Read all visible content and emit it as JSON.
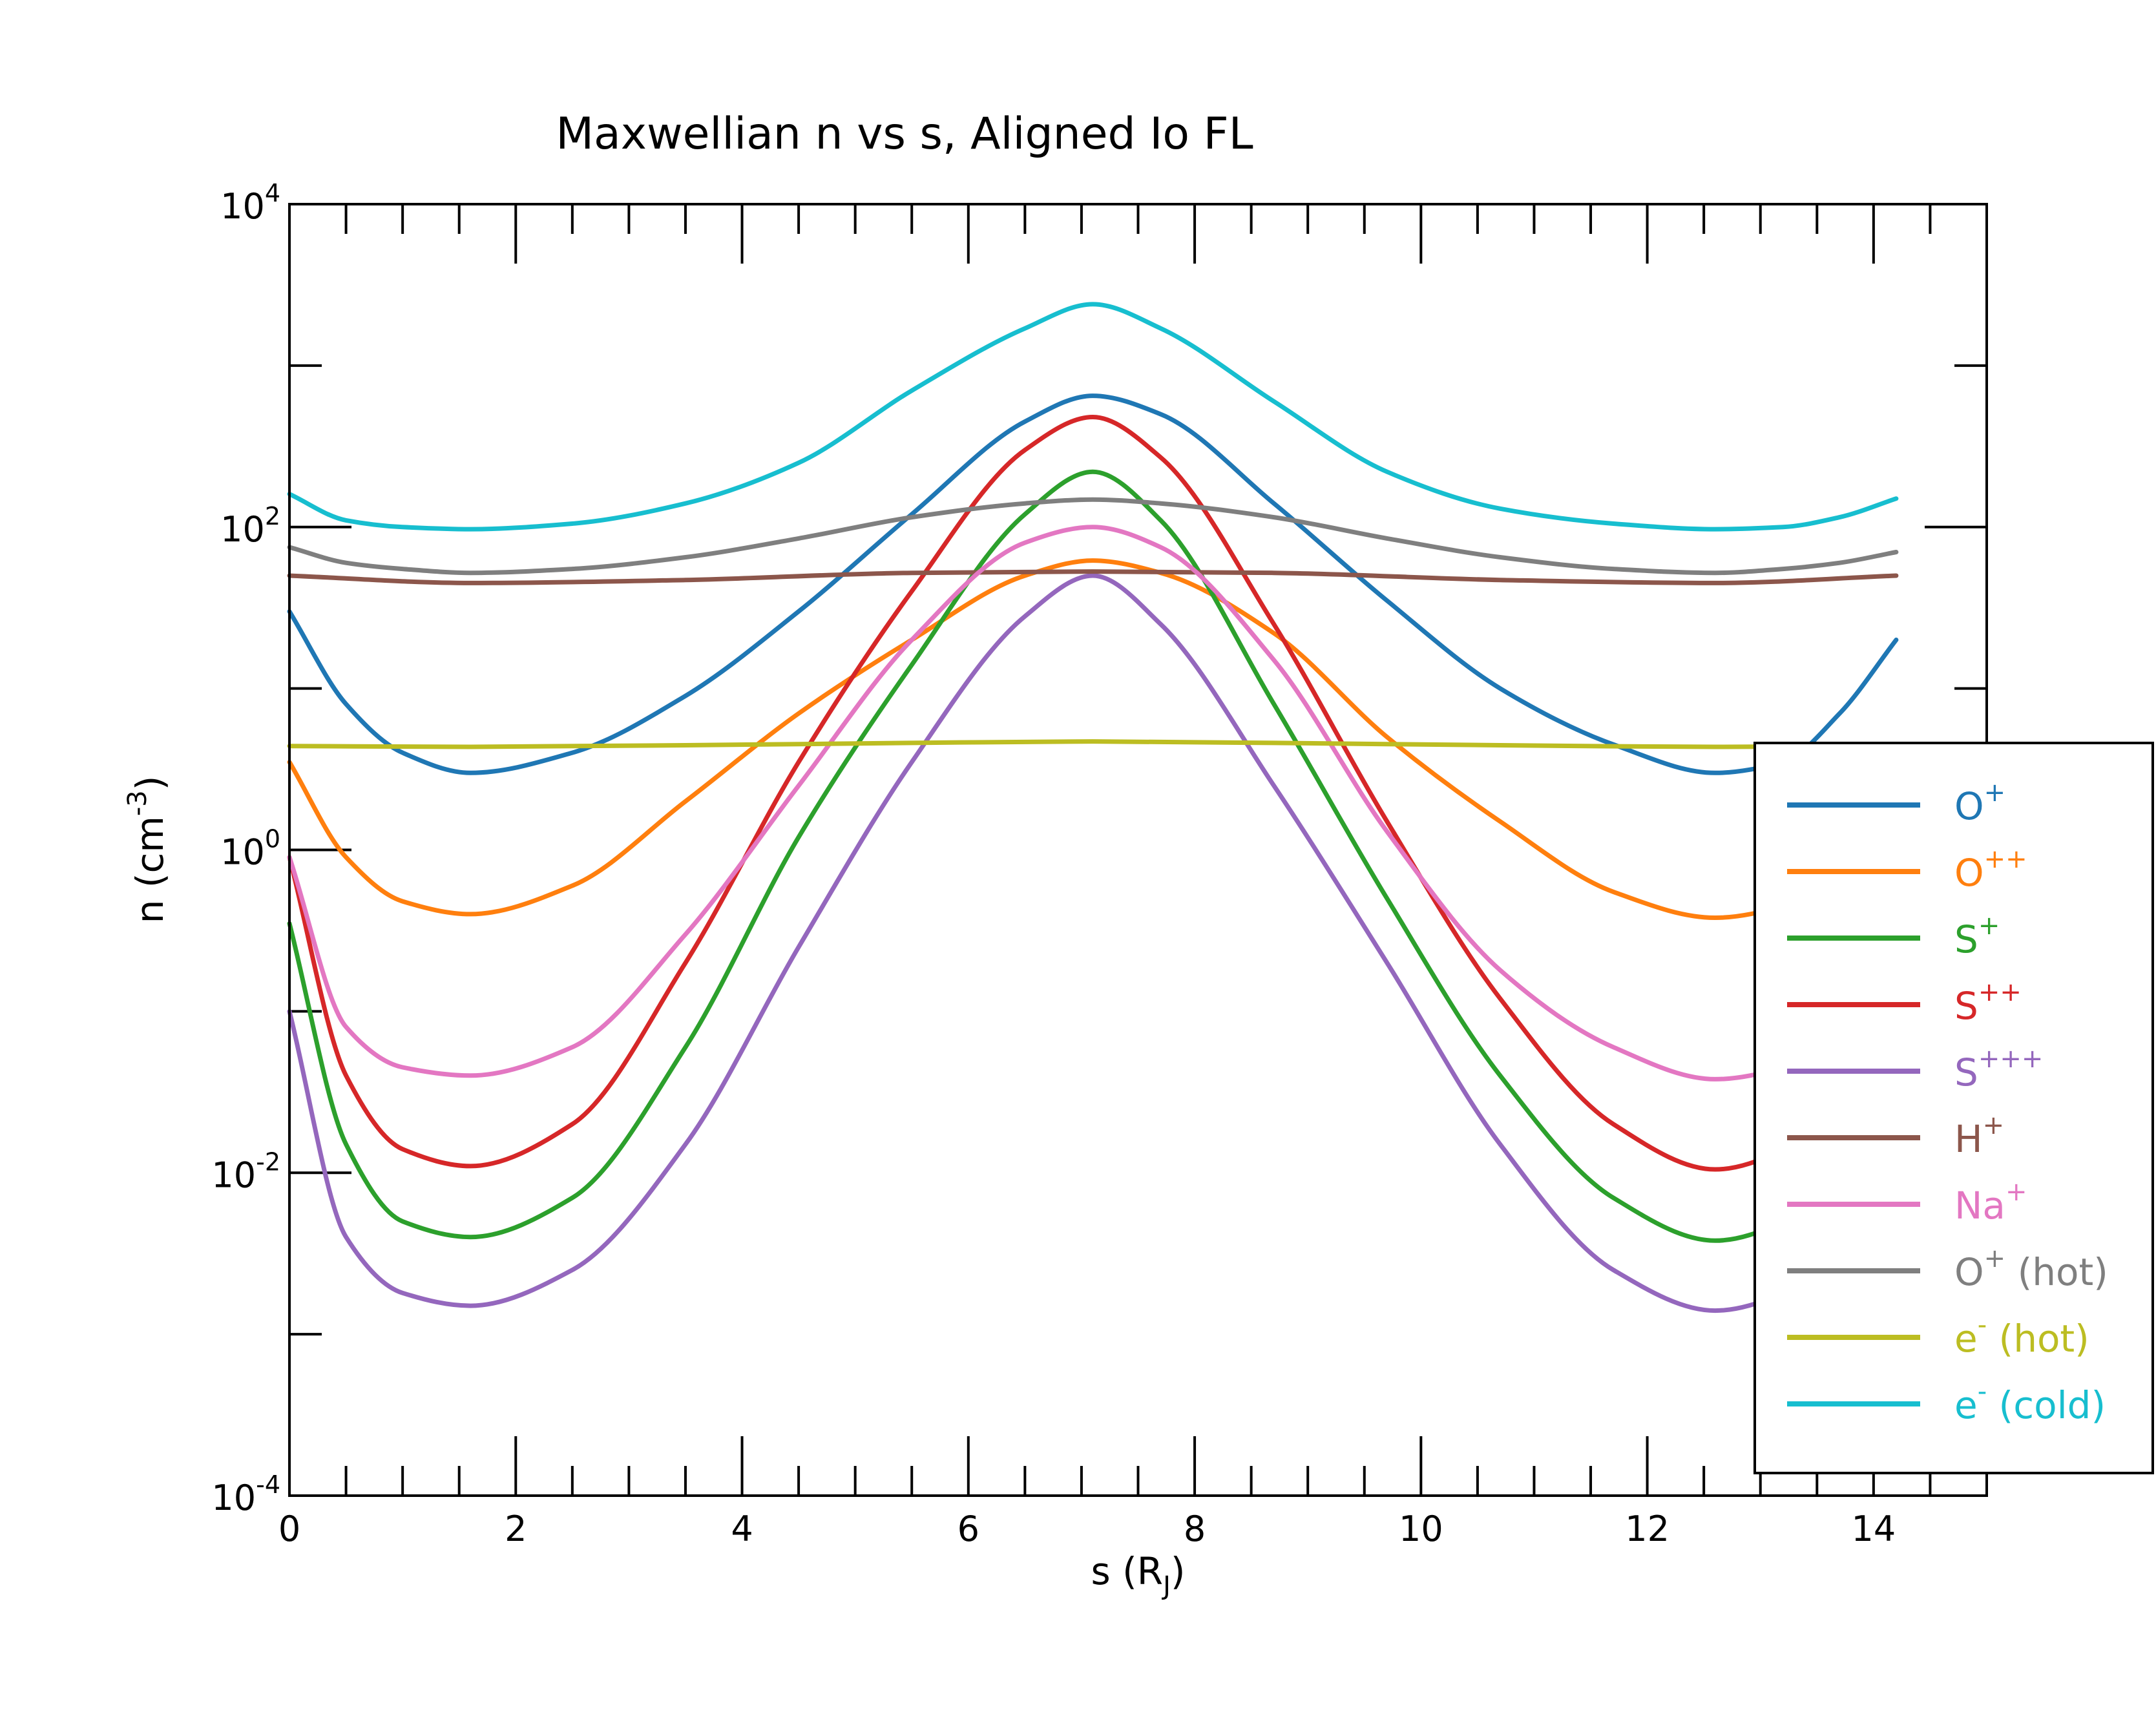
{
  "chart_data": {
    "type": "line",
    "title": "Maxwellian n vs s, Aligned Io FL",
    "xlabel": {
      "base": "s (R",
      "sub": "J",
      "suffix": ")"
    },
    "ylabel": {
      "base": "n (cm",
      "sup": "-3",
      "suffix": ")"
    },
    "x_range": [
      0,
      15
    ],
    "y_range": [
      0.0001,
      10000
    ],
    "y_scale": "log",
    "x_ticks": [
      {
        "value": 0,
        "label": "0"
      },
      {
        "value": 2,
        "label": "2"
      },
      {
        "value": 4,
        "label": "4"
      },
      {
        "value": 6,
        "label": "6"
      },
      {
        "value": 8,
        "label": "8"
      },
      {
        "value": 10,
        "label": "10"
      },
      {
        "value": 12,
        "label": "12"
      },
      {
        "value": 14,
        "label": "14"
      }
    ],
    "y_ticks": [
      {
        "value": 0.0001,
        "base": "10",
        "exp": "-4"
      },
      {
        "value": 0.01,
        "base": "10",
        "exp": "-2"
      },
      {
        "value": 1,
        "base": "10",
        "exp": "0"
      },
      {
        "value": 100,
        "base": "10",
        "exp": "2"
      },
      {
        "value": 10000,
        "base": "10",
        "exp": "4"
      }
    ],
    "legend_position": "right",
    "series": [
      {
        "name": "O",
        "sup": "+",
        "suffix": "",
        "color": "#1f77b4",
        "x": [
          0,
          0.5,
          1,
          1.6,
          2.5,
          3.5,
          4.5,
          5.5,
          6.5,
          7.1,
          7.7,
          8.7,
          9.7,
          10.7,
          11.7,
          12.6,
          13.2,
          13.7,
          14.2
        ],
        "y": [
          30,
          8,
          4,
          3,
          4,
          9,
          30,
          120,
          450,
          650,
          500,
          140,
          35,
          10,
          4.5,
          3,
          3.5,
          7,
          20
        ]
      },
      {
        "name": "O",
        "sup": "++",
        "suffix": "",
        "color": "#ff7f0e",
        "x": [
          0,
          0.5,
          1,
          1.6,
          2.5,
          3.5,
          4.5,
          5.5,
          6.5,
          7.1,
          7.7,
          8.7,
          9.7,
          10.7,
          11.7,
          12.6,
          13.2,
          13.7,
          14.2
        ],
        "y": [
          3.5,
          0.9,
          0.48,
          0.4,
          0.6,
          2,
          7,
          20,
          50,
          62,
          52,
          22,
          5,
          1.5,
          0.55,
          0.38,
          0.45,
          1.2,
          3
        ]
      },
      {
        "name": "S",
        "sup": "+",
        "suffix": "",
        "color": "#2ca02c",
        "x": [
          0,
          0.5,
          1,
          1.6,
          2.5,
          3.5,
          4.5,
          5.5,
          6.5,
          7.1,
          7.7,
          8.7,
          9.7,
          10.7,
          11.7,
          12.6,
          13.2,
          13.7,
          14.2
        ],
        "y": [
          0.35,
          0.015,
          0.005,
          0.004,
          0.007,
          0.06,
          1.2,
          14,
          120,
          220,
          110,
          8,
          0.5,
          0.04,
          0.007,
          0.0038,
          0.005,
          0.02,
          0.3
        ]
      },
      {
        "name": "S",
        "sup": "++",
        "suffix": "",
        "color": "#d62728",
        "x": [
          0,
          0.5,
          1,
          1.6,
          2.5,
          3.5,
          4.5,
          5.5,
          6.5,
          7.1,
          7.7,
          8.7,
          9.7,
          10.7,
          11.7,
          12.6,
          13.2,
          13.7,
          14.2
        ],
        "y": [
          0.9,
          0.04,
          0.014,
          0.011,
          0.02,
          0.2,
          3.5,
          40,
          300,
          480,
          270,
          25,
          1.5,
          0.12,
          0.02,
          0.0105,
          0.014,
          0.06,
          0.9
        ]
      },
      {
        "name": "S",
        "sup": "+++",
        "suffix": "",
        "color": "#9467bd",
        "x": [
          0,
          0.5,
          1,
          1.6,
          2.5,
          3.5,
          4.5,
          5.5,
          6.5,
          7.1,
          7.7,
          8.7,
          9.7,
          10.7,
          11.7,
          12.6,
          13.2,
          13.7,
          14.2
        ],
        "y": [
          0.1,
          0.004,
          0.0018,
          0.0015,
          0.0025,
          0.015,
          0.25,
          3.5,
          28,
          50,
          25,
          2.5,
          0.2,
          0.015,
          0.0025,
          0.0014,
          0.0018,
          0.006,
          0.1
        ]
      },
      {
        "name": "H",
        "sup": "+",
        "suffix": "",
        "color": "#8c564b",
        "x": [
          0,
          1.6,
          3.5,
          5.5,
          7.1,
          8.7,
          10.7,
          12.6,
          14.2
        ],
        "y": [
          50,
          45,
          47,
          52,
          53,
          52,
          47,
          45,
          50
        ]
      },
      {
        "name": "Na",
        "sup": "+",
        "suffix": "",
        "color": "#e377c2",
        "x": [
          0,
          0.5,
          1,
          1.6,
          2.5,
          3.5,
          4.5,
          5.5,
          6.5,
          7.1,
          7.7,
          8.7,
          9.7,
          10.7,
          11.7,
          12.6,
          13.2,
          13.7,
          14.2
        ],
        "y": [
          0.9,
          0.08,
          0.045,
          0.04,
          0.06,
          0.3,
          2.5,
          20,
          80,
          100,
          75,
          15,
          1.3,
          0.18,
          0.06,
          0.038,
          0.045,
          0.12,
          0.9
        ]
      },
      {
        "name": "O",
        "sup": "+",
        "suffix": " (hot)",
        "color": "#7f7f7f",
        "x": [
          0,
          0.5,
          1,
          1.6,
          2.5,
          3.5,
          4.5,
          5.5,
          6.5,
          7.1,
          7.7,
          8.7,
          9.7,
          10.7,
          11.7,
          12.6,
          13.2,
          13.7,
          14.2
        ],
        "y": [
          75,
          60,
          55,
          52,
          55,
          65,
          85,
          115,
          140,
          148,
          140,
          115,
          85,
          65,
          55,
          52,
          55,
          60,
          70
        ]
      },
      {
        "name": "e",
        "sup": "-",
        "suffix": " (hot)",
        "color": "#bcbd22",
        "x": [
          0,
          1.6,
          3.5,
          5.5,
          7.1,
          8.7,
          10.7,
          12.6,
          14.2
        ],
        "y": [
          4.4,
          4.35,
          4.45,
          4.6,
          4.7,
          4.6,
          4.45,
          4.35,
          4.4
        ]
      },
      {
        "name": "e",
        "sup": "-",
        "suffix": " (cold)",
        "color": "#17becf",
        "x": [
          0,
          0.5,
          1,
          1.6,
          2.5,
          3.5,
          4.5,
          5.5,
          6.5,
          7.1,
          7.7,
          8.7,
          9.7,
          10.7,
          11.7,
          12.6,
          13.2,
          13.7,
          14.2
        ],
        "y": [
          160,
          110,
          100,
          97,
          105,
          140,
          250,
          700,
          1700,
          2400,
          1700,
          600,
          220,
          130,
          105,
          97,
          100,
          115,
          150
        ]
      }
    ]
  }
}
